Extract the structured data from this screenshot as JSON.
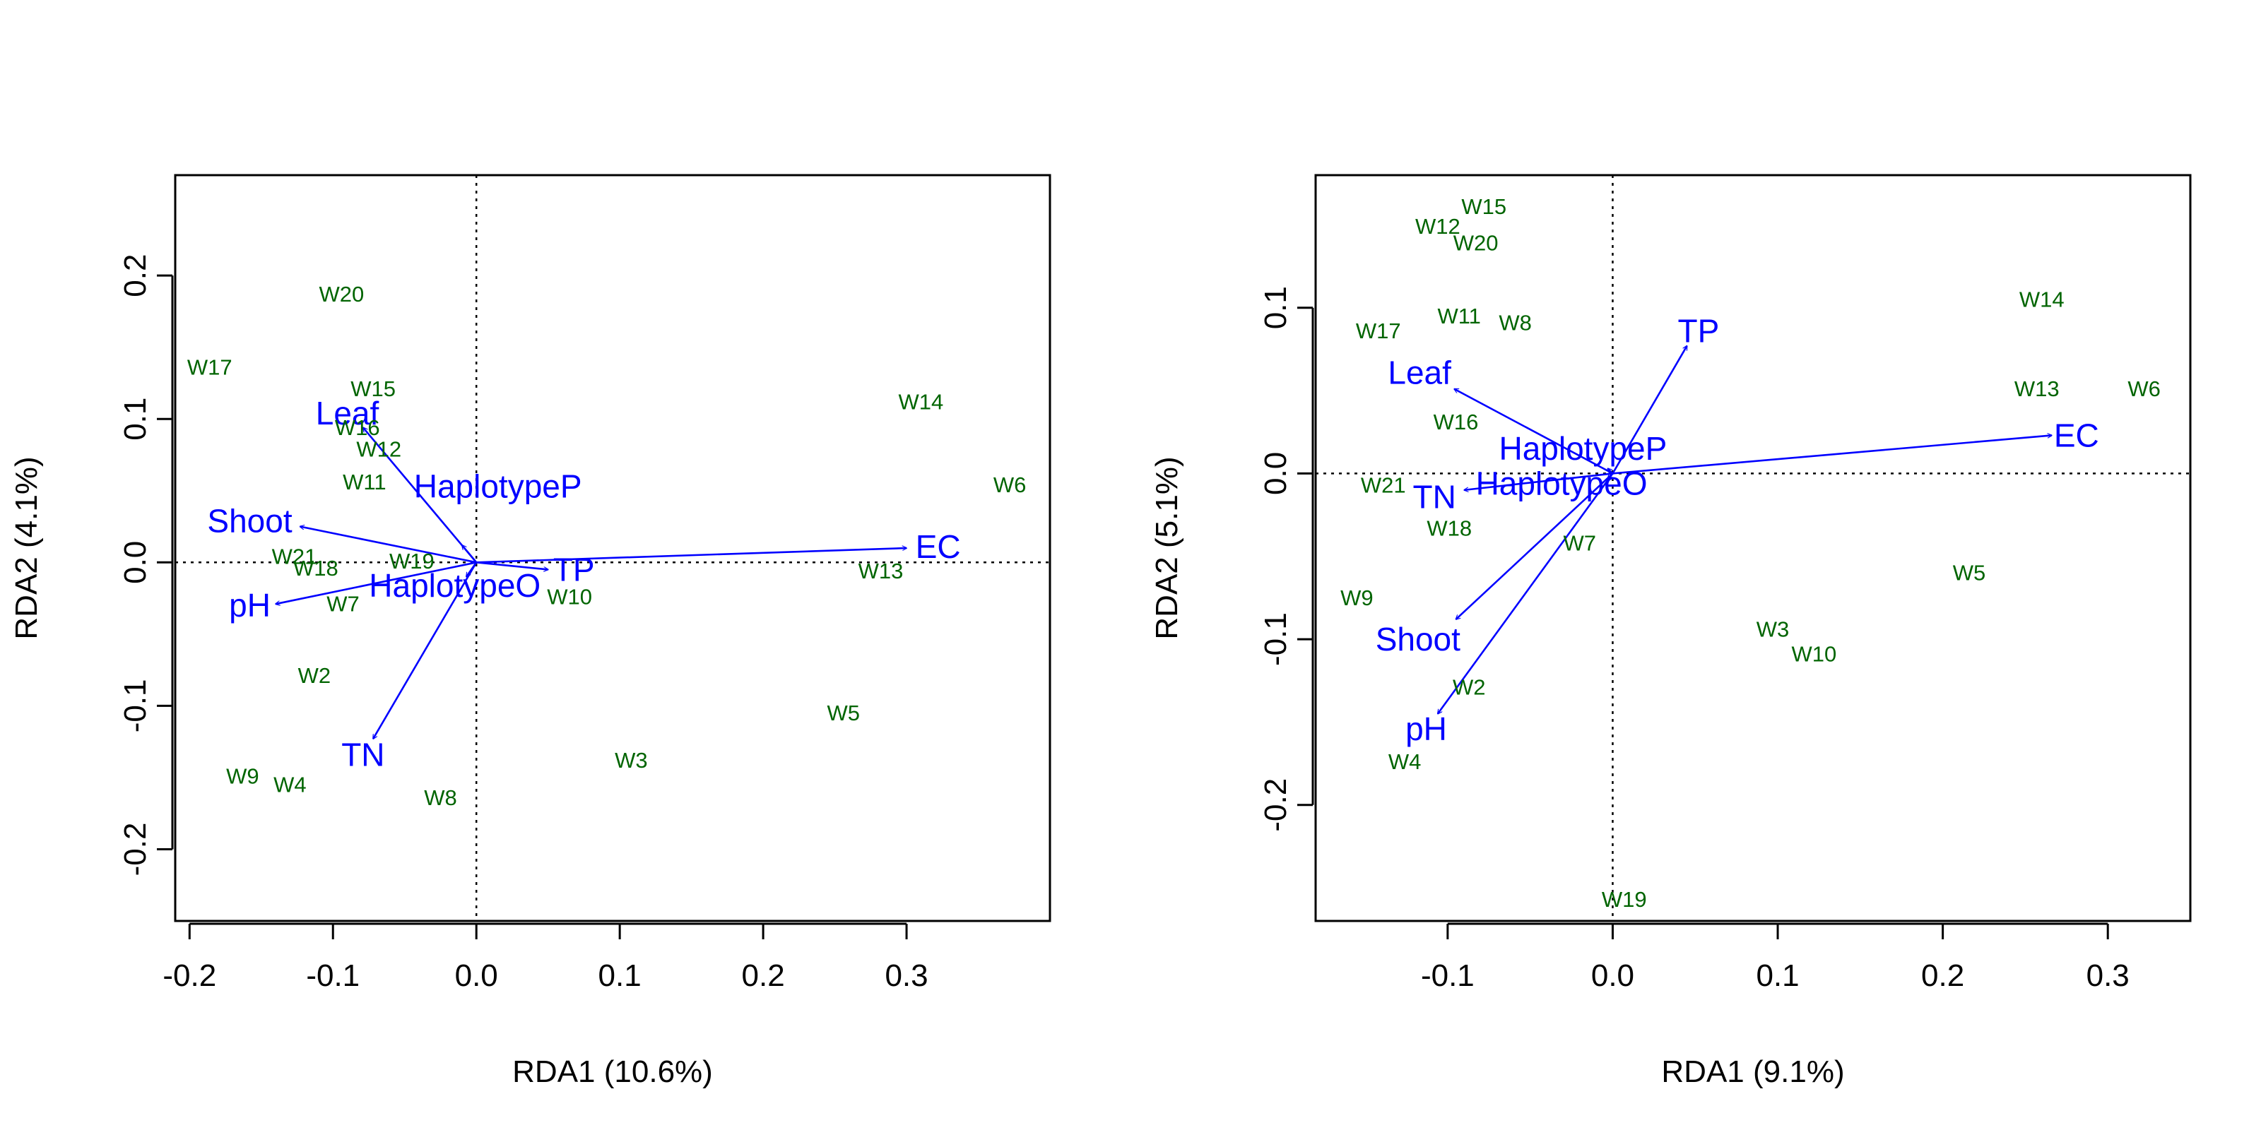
{
  "colors": {
    "site": "#006400",
    "arrow": "#0000ff",
    "axis": "#000000"
  },
  "chart_data": [
    {
      "type": "scatter",
      "xlabel": "RDA1 (10.6%)",
      "ylabel": "RDA2 (4.1%)",
      "xlim": [
        -0.21,
        0.4
      ],
      "ylim": [
        -0.25,
        0.27
      ],
      "xticks": [
        -0.2,
        -0.1,
        0.0,
        0.1,
        0.2,
        0.3
      ],
      "xtick_labels": [
        "-0.2",
        "-0.1",
        "0.0",
        "0.1",
        "0.2",
        "0.3"
      ],
      "yticks": [
        -0.2,
        -0.1,
        0.0,
        0.1,
        0.2
      ],
      "ytick_labels": [
        "-0.2",
        "-0.1",
        "0.0",
        "0.1",
        "0.2"
      ],
      "zero_lines": true,
      "sites": [
        {
          "label": "W20",
          "x": -0.094,
          "y": 0.187
        },
        {
          "label": "W17",
          "x": -0.186,
          "y": 0.136
        },
        {
          "label": "W15",
          "x": -0.072,
          "y": 0.121
        },
        {
          "label": "W16",
          "x": -0.083,
          "y": 0.094
        },
        {
          "label": "W12",
          "x": -0.068,
          "y": 0.079
        },
        {
          "label": "W11",
          "x": -0.078,
          "y": 0.056
        },
        {
          "label": "W21",
          "x": -0.127,
          "y": 0.004
        },
        {
          "label": "W18",
          "x": -0.112,
          "y": -0.004
        },
        {
          "label": "W19",
          "x": -0.045,
          "y": 0.001
        },
        {
          "label": "W7",
          "x": -0.093,
          "y": -0.029
        },
        {
          "label": "W2",
          "x": -0.113,
          "y": -0.079
        },
        {
          "label": "W9",
          "x": -0.163,
          "y": -0.149
        },
        {
          "label": "W4",
          "x": -0.13,
          "y": -0.155
        },
        {
          "label": "W8",
          "x": -0.025,
          "y": -0.164
        },
        {
          "label": "W3",
          "x": 0.108,
          "y": -0.138
        },
        {
          "label": "W5",
          "x": 0.256,
          "y": -0.105
        },
        {
          "label": "W10",
          "x": 0.065,
          "y": -0.024
        },
        {
          "label": "W13",
          "x": 0.282,
          "y": -0.006
        },
        {
          "label": "W14",
          "x": 0.31,
          "y": 0.112
        },
        {
          "label": "W6",
          "x": 0.372,
          "y": 0.054
        }
      ],
      "arrows": [
        {
          "label": "Leaf",
          "x": -0.079,
          "y": 0.094,
          "lx": -0.09,
          "ly": 0.104
        },
        {
          "label": "HaplotypeP",
          "x": -0.01,
          "y": 0.012,
          "lx": 0.015,
          "ly": 0.053
        },
        {
          "label": "Shoot",
          "x": -0.123,
          "y": 0.025,
          "lx": -0.158,
          "ly": 0.029
        },
        {
          "label": "pH",
          "x": -0.14,
          "y": -0.029,
          "lx": -0.158,
          "ly": -0.03
        },
        {
          "label": "TN",
          "x": -0.072,
          "y": -0.123,
          "lx": -0.079,
          "ly": -0.134
        },
        {
          "label": "HaplotypeO",
          "x": -0.007,
          "y": -0.01,
          "lx": -0.015,
          "ly": -0.016
        },
        {
          "label": "TP",
          "x": 0.05,
          "y": -0.005,
          "lx": 0.068,
          "ly": -0.005
        },
        {
          "label": "EC",
          "x": 0.3,
          "y": 0.01,
          "lx": 0.322,
          "ly": 0.011
        }
      ]
    },
    {
      "type": "scatter",
      "xlabel": "RDA1 (9.1%)",
      "ylabel": "RDA2 (5.1%)",
      "xlim": [
        -0.18,
        0.35
      ],
      "ylim": [
        -0.27,
        0.18
      ],
      "xticks": [
        -0.1,
        0.0,
        0.1,
        0.2,
        0.3
      ],
      "xtick_labels": [
        "-0.1",
        "0.0",
        "0.1",
        "0.2",
        "0.3"
      ],
      "yticks": [
        -0.2,
        -0.1,
        0.0,
        0.1
      ],
      "ytick_labels": [
        "-0.2",
        "-0.1",
        "0.0",
        "0.1"
      ],
      "zero_lines": true,
      "sites": [
        {
          "label": "W15",
          "x": -0.078,
          "y": 0.161
        },
        {
          "label": "W12",
          "x": -0.106,
          "y": 0.149
        },
        {
          "label": "W20",
          "x": -0.083,
          "y": 0.139
        },
        {
          "label": "W17",
          "x": -0.142,
          "y": 0.086
        },
        {
          "label": "W11",
          "x": -0.093,
          "y": 0.095
        },
        {
          "label": "W8",
          "x": -0.059,
          "y": 0.091
        },
        {
          "label": "W16",
          "x": -0.095,
          "y": 0.031
        },
        {
          "label": "W21",
          "x": -0.139,
          "y": -0.007
        },
        {
          "label": "W18",
          "x": -0.099,
          "y": -0.033
        },
        {
          "label": "W7",
          "x": -0.02,
          "y": -0.042
        },
        {
          "label": "W9",
          "x": -0.155,
          "y": -0.075
        },
        {
          "label": "W2",
          "x": -0.087,
          "y": -0.129
        },
        {
          "label": "W4",
          "x": -0.126,
          "y": -0.174
        },
        {
          "label": "W19",
          "x": 0.007,
          "y": -0.257
        },
        {
          "label": "W3",
          "x": 0.097,
          "y": -0.094
        },
        {
          "label": "W10",
          "x": 0.122,
          "y": -0.109
        },
        {
          "label": "W5",
          "x": 0.216,
          "y": -0.06
        },
        {
          "label": "W14",
          "x": 0.26,
          "y": 0.105
        },
        {
          "label": "W13",
          "x": 0.257,
          "y": 0.051
        },
        {
          "label": "W6",
          "x": 0.322,
          "y": 0.051
        }
      ],
      "arrows": [
        {
          "label": "TP",
          "x": 0.045,
          "y": 0.077,
          "lx": 0.052,
          "ly": 0.086
        },
        {
          "label": "Leaf",
          "x": -0.096,
          "y": 0.051,
          "lx": -0.117,
          "ly": 0.061
        },
        {
          "label": "HaplotypeP",
          "x": -0.003,
          "y": 0.003,
          "lx": -0.018,
          "ly": 0.015
        },
        {
          "label": "EC",
          "x": 0.266,
          "y": 0.023,
          "lx": 0.281,
          "ly": 0.023
        },
        {
          "label": "HaplotypeO",
          "x": -0.003,
          "y": -0.003,
          "lx": -0.031,
          "ly": -0.006
        },
        {
          "label": "TN",
          "x": -0.09,
          "y": -0.01,
          "lx": -0.108,
          "ly": -0.014
        },
        {
          "label": "Shoot",
          "x": -0.095,
          "y": -0.088,
          "lx": -0.118,
          "ly": -0.1
        },
        {
          "label": "pH",
          "x": -0.106,
          "y": -0.145,
          "lx": -0.113,
          "ly": -0.154
        }
      ]
    }
  ]
}
